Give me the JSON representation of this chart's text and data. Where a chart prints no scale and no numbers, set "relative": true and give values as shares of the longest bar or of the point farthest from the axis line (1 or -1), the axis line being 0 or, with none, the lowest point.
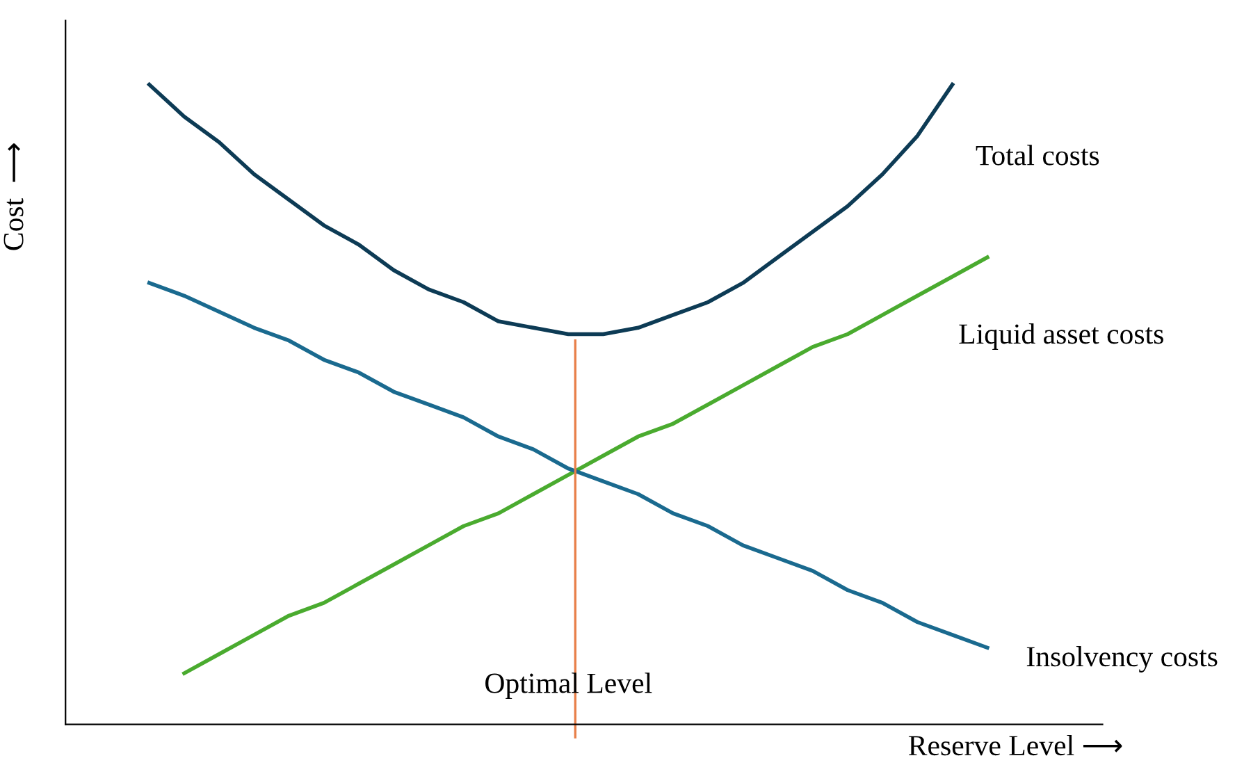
{
  "chart_data": {
    "type": "line",
    "relative": true,
    "xlabel": "Reserve Level ⟶",
    "ylabel": "Cost  ⟶",
    "categories": [
      null,
      null,
      null,
      null,
      null,
      null,
      null,
      null,
      null,
      null,
      null,
      null,
      null,
      null,
      null,
      null,
      null,
      null,
      null,
      null,
      null,
      null,
      null,
      null,
      null
    ],
    "series": [
      {
        "name": "Total costs",
        "color": "#0d3b55",
        "values": [
          1.0,
          0.95,
          0.91,
          0.86,
          0.82,
          0.78,
          0.75,
          0.71,
          0.68,
          0.66,
          0.63,
          0.62,
          0.61,
          0.61,
          0.62,
          0.64,
          0.66,
          0.69,
          0.73,
          0.77,
          0.81,
          0.86,
          0.92,
          1.0,
          null
        ]
      },
      {
        "name": "Liquid asset costs",
        "color": "#4aab2f",
        "values": [
          null,
          0.08,
          0.11,
          0.14,
          0.17,
          0.19,
          0.22,
          0.25,
          0.28,
          0.31,
          0.33,
          0.36,
          0.39,
          0.42,
          0.45,
          0.47,
          0.5,
          0.53,
          0.56,
          0.59,
          0.61,
          0.64,
          0.67,
          0.7,
          0.73
        ]
      },
      {
        "name": "Insolvency costs",
        "color": "#1a6a8f",
        "values": [
          0.69,
          0.67,
          0.645,
          0.62,
          0.6,
          0.57,
          0.55,
          0.52,
          0.5,
          0.48,
          0.45,
          0.43,
          0.4,
          0.38,
          0.36,
          0.33,
          0.31,
          0.28,
          0.26,
          0.24,
          0.21,
          0.19,
          0.16,
          0.14,
          0.12
        ]
      }
    ],
    "annotations": [
      "Optimal Level"
    ],
    "legend": false,
    "marker": "none",
    "line_style": "solid"
  }
}
